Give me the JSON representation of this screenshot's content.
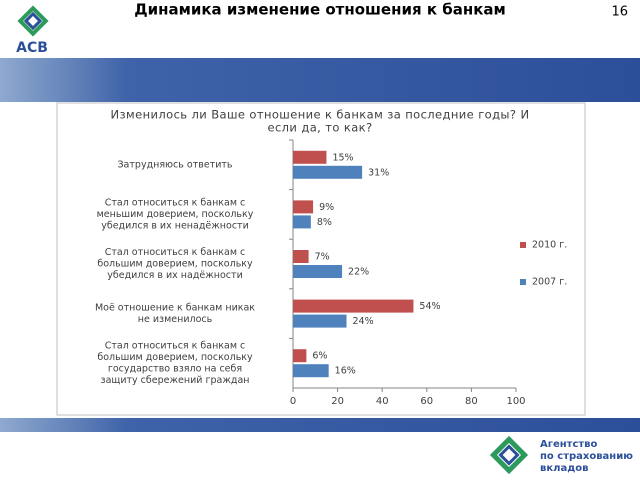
{
  "slide": {
    "title": "Динамика изменение отношения к банкам",
    "page_number": "16",
    "logo_text": "АСВ",
    "agency_name": [
      "Агентство",
      "по страхованию",
      "вкладов"
    ]
  },
  "chart_data": {
    "type": "bar",
    "orientation": "horizontal",
    "title": [
      "Изменилось ли Ваше отношение к банкам за последние годы? И",
      "если да, то как?"
    ],
    "categories": [
      [
        "Затрудняюсь ответить"
      ],
      [
        "Стал относиться к банкам с",
        "меньшим доверием, поскольку",
        "убедился в их ненадёжности"
      ],
      [
        "Стал относиться к банкам с",
        "большим доверием, поскольку",
        "убедился в их надёжности"
      ],
      [
        "Моё отношение к банкам никак",
        "не изменилось"
      ],
      [
        "Стал относиться к банкам с",
        "большим доверием, поскольку",
        "государство взяло на себя",
        "защиту сбережений граждан"
      ]
    ],
    "series": [
      {
        "name": "2010 г.",
        "color": "#c0504d",
        "values": [
          15,
          9,
          7,
          54,
          6
        ],
        "value_labels": [
          "15%",
          "9%",
          "7%",
          "54%",
          "6%"
        ]
      },
      {
        "name": "2007 г.",
        "color": "#4f81bd",
        "values": [
          31,
          8,
          22,
          24,
          16
        ],
        "value_labels": [
          "31%",
          "8%",
          "22%",
          "24%",
          "16%"
        ]
      }
    ],
    "xlim": [
      0,
      100
    ],
    "xticks": [
      0,
      20,
      40,
      60,
      80,
      100
    ],
    "grid": false,
    "legend": "right"
  }
}
